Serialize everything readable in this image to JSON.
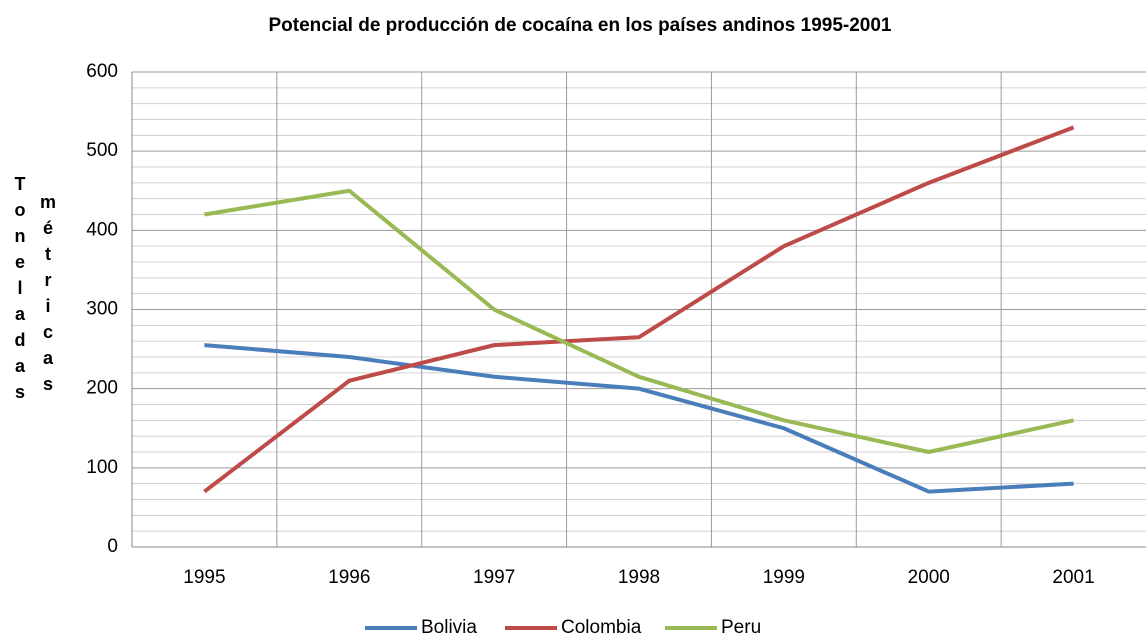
{
  "chart_data": {
    "type": "line",
    "title": "Potencial de producción de cocaína en los países andinos 1995-2001",
    "y_label": "Toneladas métricas",
    "categories": [
      "1995",
      "1996",
      "1997",
      "1998",
      "1999",
      "2000",
      "2001"
    ],
    "series": [
      {
        "name": "Bolivia",
        "color": "#4a7ebb",
        "values": [
          255,
          240,
          215,
          200,
          150,
          70,
          80
        ]
      },
      {
        "name": "Colombia",
        "color": "#be4b48",
        "values": [
          70,
          210,
          255,
          265,
          380,
          460,
          530
        ]
      },
      {
        "name": "Peru",
        "color": "#98b954",
        "values": [
          420,
          450,
          300,
          215,
          160,
          120,
          160
        ]
      }
    ],
    "ylim": [
      0,
      600
    ],
    "yticks": [
      0,
      100,
      200,
      300,
      400,
      500,
      600
    ],
    "minor_yticks": [
      20,
      40,
      60,
      80,
      120,
      140,
      160,
      180,
      220,
      240,
      260,
      280,
      320,
      340,
      360,
      380,
      420,
      440,
      460,
      480,
      520,
      540,
      560,
      580
    ],
    "grid": true,
    "legend": "bottom"
  }
}
